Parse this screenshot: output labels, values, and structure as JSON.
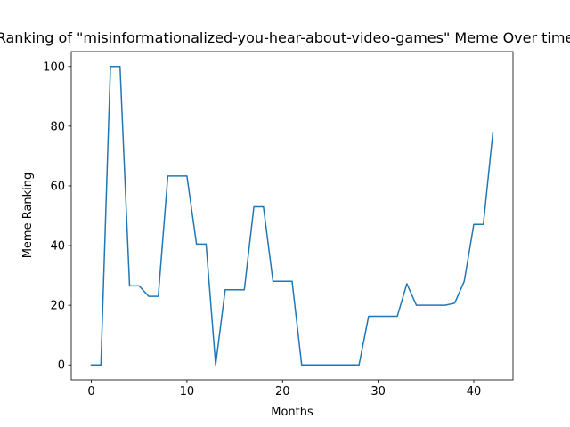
{
  "chart_data": {
    "type": "line",
    "title": "Ranking of \"misinformationalized-you-hear-about-video-games\" Meme Over time",
    "xlabel": "Months",
    "ylabel": "Meme Ranking",
    "xlim": [
      -2.1,
      44.1
    ],
    "ylim": [
      -5,
      105
    ],
    "xticks": [
      0,
      10,
      20,
      30,
      40
    ],
    "yticks": [
      0,
      20,
      40,
      60,
      80,
      100
    ],
    "grid": false,
    "legend": "none",
    "series": [
      {
        "color": "#1f77b4",
        "x": [
          0,
          1,
          2,
          3,
          4,
          5,
          6,
          7,
          8,
          9,
          10,
          11,
          12,
          13,
          14,
          15,
          16,
          17,
          18,
          19,
          20,
          21,
          22,
          23,
          24,
          25,
          26,
          27,
          28,
          29,
          30,
          31,
          32,
          33,
          34,
          35,
          36,
          37,
          38,
          39,
          40,
          41,
          42
        ],
        "values": [
          0,
          0,
          100,
          100,
          26.5,
          26.5,
          23,
          23,
          63.3,
          63.3,
          63.3,
          40.5,
          40.5,
          0,
          25.2,
          25.2,
          25.2,
          53,
          53,
          28,
          28,
          28,
          0,
          0,
          0,
          0,
          0,
          0,
          0,
          16.3,
          16.3,
          16.3,
          16.3,
          27.2,
          20,
          20,
          20,
          20,
          20.7,
          28,
          47.1,
          47.1,
          78
        ]
      }
    ]
  }
}
